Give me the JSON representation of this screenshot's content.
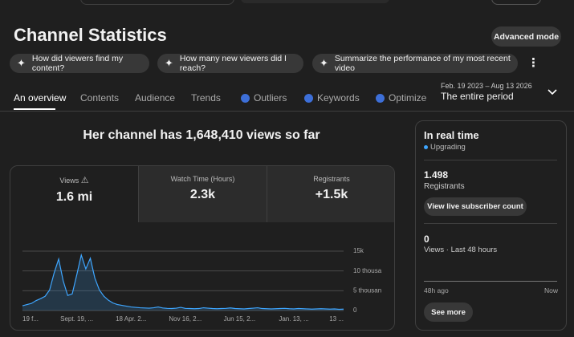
{
  "header": {
    "title": "Channel Statistics",
    "advanced_mode": "Advanced mode"
  },
  "suggestions": [
    "How did viewers find my content?",
    "How many new viewers did I reach?",
    "Summarize the performance of my most recent video"
  ],
  "tabs": [
    "An overview",
    "Contents",
    "Audience",
    "Trends",
    "Outliers",
    "Keywords",
    "Optimize"
  ],
  "period": {
    "range": "Feb. 19 2023 – Aug 13 2026",
    "label": "The entire period"
  },
  "summary": "Her channel has 1,648,410 views so far",
  "metrics": [
    {
      "label": "Views",
      "value": "1.6 mi"
    },
    {
      "label": "Watch Time (Hours)",
      "value": "2.3k"
    },
    {
      "label": "Registrants",
      "value": "+1.5k"
    }
  ],
  "chart_data": {
    "type": "area",
    "color": "#3ea6ff",
    "grid": true,
    "categories": [
      "19 f...",
      null,
      null,
      null,
      null,
      null,
      null,
      null,
      null,
      null,
      null,
      null,
      "Sept. 19, ...",
      null,
      null,
      null,
      null,
      null,
      null,
      null,
      null,
      null,
      null,
      null,
      "18 Apr. 2...",
      null,
      null,
      null,
      null,
      null,
      null,
      null,
      null,
      null,
      null,
      null,
      "Nov 16, 2...",
      null,
      null,
      null,
      null,
      null,
      null,
      null,
      null,
      null,
      null,
      null,
      "Jun 15, 2...",
      null,
      null,
      null,
      null,
      null,
      null,
      null,
      null,
      null,
      null,
      null,
      "Jan. 13, ...",
      null,
      null,
      null,
      null,
      null,
      null,
      null,
      null,
      null,
      null,
      "13 ..."
    ],
    "values": [
      1200,
      1500,
      1800,
      2500,
      3000,
      3600,
      5200,
      9500,
      13000,
      7500,
      3800,
      4200,
      9000,
      14000,
      10500,
      13200,
      8200,
      5200,
      3600,
      2600,
      1900,
      1500,
      1300,
      1100,
      900,
      800,
      700,
      650,
      600,
      700,
      900,
      650,
      550,
      500,
      600,
      800,
      550,
      500,
      450,
      500,
      700,
      600,
      500,
      450,
      500,
      550,
      650,
      500,
      450,
      400,
      500,
      600,
      700,
      500,
      450,
      400,
      450,
      500,
      550,
      450,
      400,
      500,
      450,
      400,
      350,
      400,
      450,
      400,
      350,
      400,
      300,
      350
    ],
    "ylim": [
      0,
      15000
    ],
    "yticks": [
      0,
      {
        "value": 5000,
        "label": "5 thousan"
      },
      {
        "value": 10000,
        "label": "10 thousa"
      },
      {
        "value": 15000,
        "label": "15k"
      }
    ]
  },
  "realtime": {
    "title": "In real time",
    "status": "Upgrading",
    "registrants_value": "1.498",
    "registrants_label": "Registrants",
    "button": "View live subscriber count",
    "views_value": "0",
    "views_label": "Views · Last 48 hours",
    "from": "48h ago",
    "to": "Now",
    "more": "See more"
  }
}
